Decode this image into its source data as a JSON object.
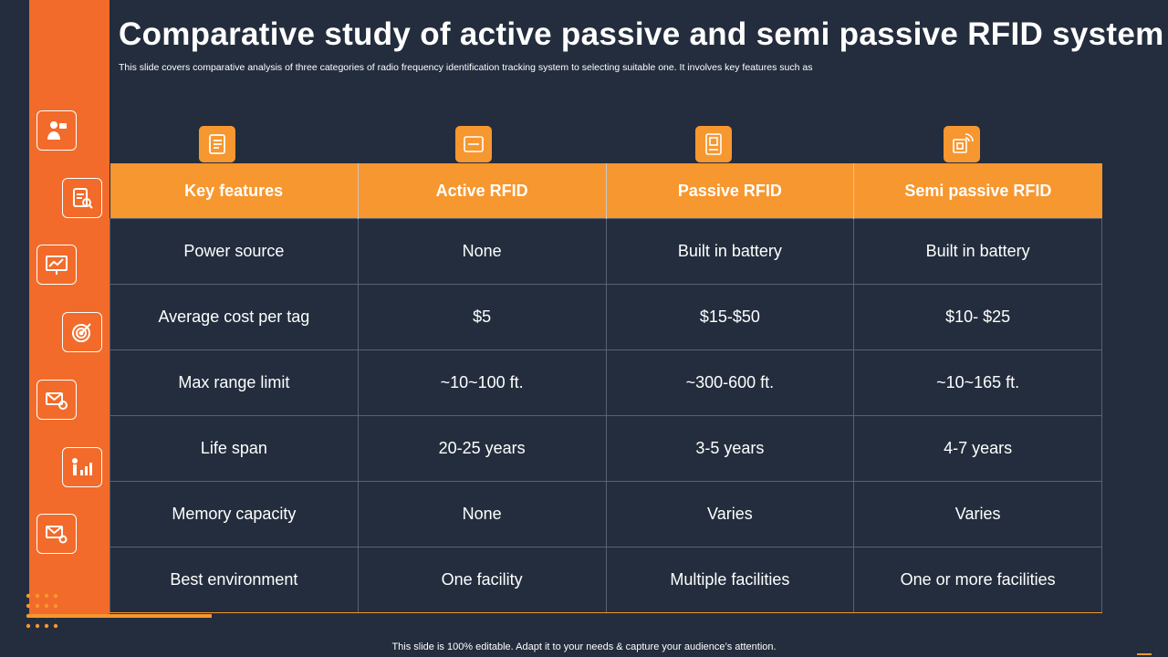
{
  "header": {
    "title": "Comparative study of active passive and semi passive RFID system",
    "subtitle": "This slide covers comparative analysis of three categories of radio frequency identification tracking system to selecting suitable one. It involves key features such as"
  },
  "sidebar": {
    "icons": [
      "person-presenter-icon",
      "clipboard-search-icon",
      "presentation-chart-icon",
      "target-icon",
      "email-gear-icon",
      "person-growth-chart-icon",
      "email-settings-icon"
    ]
  },
  "column_icons": [
    "checklist-icon",
    "rfid-card-icon",
    "rfid-tag-icon",
    "rfid-signal-chip-icon"
  ],
  "table": {
    "headers": [
      "Key features",
      "Active RFID",
      "Passive RFID",
      "Semi passive RFID"
    ],
    "rows": [
      [
        "Power source",
        "None",
        "Built in battery",
        "Built in battery"
      ],
      [
        "Average cost per tag",
        "$5",
        "$15-$50",
        "$10- $25"
      ],
      [
        "Max range limit",
        "~10~100 ft.",
        "~300-600 ft.",
        "~10~165 ft."
      ],
      [
        "Life span",
        "20-25 years",
        "3-5 years",
        "4-7 years"
      ],
      [
        "Memory capacity",
        "None",
        "Varies",
        "Varies"
      ],
      [
        "Best environment",
        "One facility",
        "Multiple facilities",
        "One or more facilities"
      ]
    ]
  },
  "footer": {
    "text": "This slide is 100% editable. Adapt it to your needs & capture your audience’s attention."
  },
  "colors": {
    "background": "#232d3d",
    "sidebar": "#f26b2a",
    "accent": "#f7972f"
  }
}
